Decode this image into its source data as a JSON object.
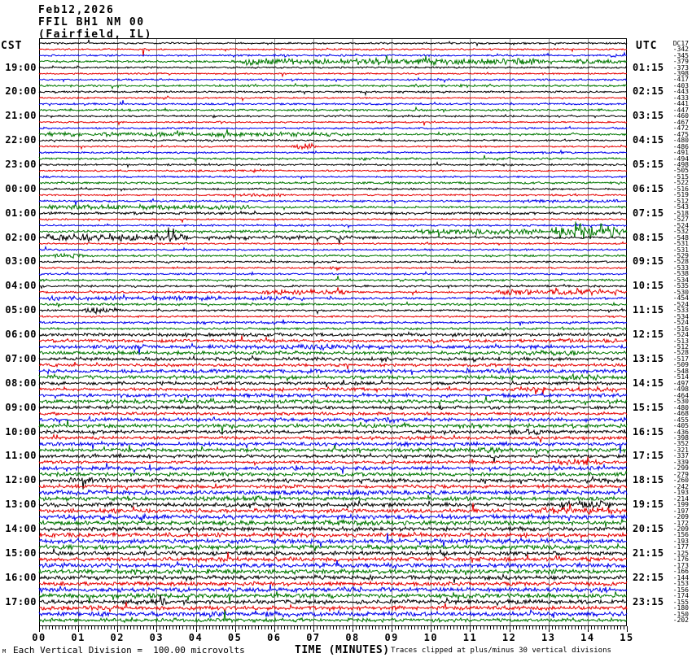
{
  "header": {
    "line1": "Feb12,2026",
    "line2": "FFIL BH1 NM 00",
    "line3": "(Fairfield, IL)"
  },
  "axes": {
    "left_header": "CST",
    "right_header": "UTC",
    "x_ticks": [
      "00",
      "01",
      "02",
      "03",
      "04",
      "05",
      "06",
      "07",
      "08",
      "09",
      "10",
      "11",
      "12",
      "13",
      "14",
      "15"
    ],
    "x_title": "TIME (MINUTES)"
  },
  "footer": {
    "left_note": "Each Vertical Division =  100.00 microvolts",
    "right_note": "Traces clipped at plus/minus 30 vertical divisions",
    "corner_mark": "M"
  },
  "colors": {
    "black": "#000000",
    "red": "#e60000",
    "blue": "#0000ee",
    "green": "#007700",
    "grid": "#808080",
    "border": "#000000"
  },
  "chart_data": {
    "type": "line",
    "subtype": "helicorder",
    "title": "FFIL BH1 NM 00 (Fairfield, IL) Feb12,2026",
    "x_range_minutes": [
      0,
      15
    ],
    "minutes_per_row": 15,
    "row_color_cycle": [
      "black",
      "red",
      "blue",
      "green"
    ],
    "grid": true,
    "rows": [
      {
        "dc": "DC17",
        "amp": 0.9,
        "bursts": [
          [
            8,
            13,
            0.9
          ]
        ]
      },
      {
        "dc": "-342",
        "amp": 0.8,
        "bursts": [
          [
            2.5,
            2.8,
            3
          ]
        ]
      },
      {
        "dc": "-345",
        "amp": 0.9,
        "bursts": [
          [
            12.8,
            13.2,
            3
          ],
          [
            14.4,
            15,
            2
          ]
        ]
      },
      {
        "dc": "-379",
        "amp": 1.1,
        "bursts": [
          [
            5,
            13,
            3.2
          ],
          [
            13.5,
            15,
            2.6
          ]
        ]
      },
      {
        "cst": "19:00",
        "utc": "01:15",
        "dc": "-373",
        "amp": 0.9,
        "bursts": []
      },
      {
        "dc": "-398",
        "amp": 0.8,
        "bursts": [
          [
            2.5,
            2.8,
            4
          ]
        ]
      },
      {
        "dc": "-417",
        "amp": 0.9,
        "bursts": []
      },
      {
        "dc": "-403",
        "amp": 1.0,
        "bursts": [
          [
            10.5,
            11.2,
            1.8
          ]
        ]
      },
      {
        "cst": "20:00",
        "utc": "02:15",
        "dc": "-443",
        "amp": 0.9,
        "bursts": []
      },
      {
        "dc": "-433",
        "amp": 0.8,
        "bursts": [
          [
            3.1,
            3.4,
            3.5
          ]
        ]
      },
      {
        "dc": "-441",
        "amp": 0.9,
        "bursts": []
      },
      {
        "dc": "-447",
        "amp": 1.0,
        "bursts": [
          [
            0.4,
            1.1,
            1.8
          ]
        ]
      },
      {
        "cst": "21:00",
        "utc": "03:15",
        "dc": "-460",
        "amp": 0.9,
        "bursts": [
          [
            4.3,
            4.6,
            2.2
          ]
        ]
      },
      {
        "dc": "-467",
        "amp": 0.8,
        "bursts": [
          [
            4.5,
            4.8,
            2.6
          ]
        ]
      },
      {
        "dc": "-472",
        "amp": 0.9,
        "bursts": []
      },
      {
        "dc": "-475",
        "amp": 1.0,
        "bursts": [
          [
            0,
            8,
            2.2
          ]
        ]
      },
      {
        "cst": "22:00",
        "utc": "04:15",
        "dc": "-480",
        "amp": 0.9,
        "bursts": [
          [
            4.2,
            4.6,
            2.6
          ]
        ]
      },
      {
        "dc": "-486",
        "amp": 0.8,
        "bursts": [
          [
            6.3,
            7.2,
            3
          ]
        ]
      },
      {
        "dc": "-491",
        "amp": 0.9,
        "bursts": []
      },
      {
        "dc": "-494",
        "amp": 1.0,
        "bursts": [
          [
            8,
            9,
            1.8
          ]
        ]
      },
      {
        "cst": "23:00",
        "utc": "05:15",
        "dc": "-498",
        "amp": 0.9,
        "bursts": []
      },
      {
        "dc": "-505",
        "amp": 0.8,
        "bursts": [
          [
            3,
            6,
            1.2
          ],
          [
            6,
            6.2,
            2.5
          ]
        ]
      },
      {
        "dc": "-515",
        "amp": 0.9,
        "bursts": [
          [
            5.4,
            5.6,
            2
          ]
        ]
      },
      {
        "dc": "-522",
        "amp": 1.0,
        "bursts": []
      },
      {
        "cst": "00:00",
        "utc": "06:15",
        "dc": "-516",
        "amp": 0.9,
        "bursts": []
      },
      {
        "dc": "-519",
        "amp": 0.8,
        "bursts": [
          [
            5,
            6.5,
            1.6
          ],
          [
            13.2,
            13.5,
            2.6
          ]
        ]
      },
      {
        "dc": "-512",
        "amp": 1.0,
        "bursts": [
          [
            12,
            15,
            1.6
          ]
        ]
      },
      {
        "dc": "-543",
        "amp": 1.0,
        "bursts": [
          [
            0,
            5.5,
            2.4
          ]
        ]
      },
      {
        "cst": "01:00",
        "utc": "07:15",
        "dc": "-518",
        "amp": 1.3,
        "bursts": []
      },
      {
        "dc": "-527",
        "amp": 0.8,
        "bursts": [
          [
            13.6,
            13.9,
            2.4
          ]
        ]
      },
      {
        "dc": "-524",
        "amp": 0.9,
        "bursts": [
          [
            9.4,
            9.7,
            2.6
          ]
        ]
      },
      {
        "dc": "-532",
        "amp": 1.2,
        "bursts": [
          [
            9.5,
            13,
            2.8
          ],
          [
            13,
            15,
            8.5
          ]
        ]
      },
      {
        "cst": "02:00",
        "utc": "08:15",
        "dc": "-548",
        "amp": 1.2,
        "bursts": [
          [
            0,
            4,
            3.8
          ],
          [
            4,
            8,
            2.2
          ]
        ]
      },
      {
        "dc": "-531",
        "amp": 0.8,
        "bursts": []
      },
      {
        "dc": "-531",
        "amp": 0.9,
        "bursts": []
      },
      {
        "dc": "-529",
        "amp": 1.0,
        "bursts": [
          [
            0.2,
            1.2,
            2.8
          ]
        ]
      },
      {
        "cst": "03:00",
        "utc": "09:15",
        "dc": "-528",
        "amp": 0.9,
        "bursts": []
      },
      {
        "dc": "-533",
        "amp": 0.8,
        "bursts": [
          [
            7.4,
            7.7,
            4.5
          ]
        ]
      },
      {
        "dc": "-538",
        "amp": 0.9,
        "bursts": []
      },
      {
        "dc": "-534",
        "amp": 1.0,
        "bursts": [
          [
            9,
            9.4,
            2.6
          ]
        ]
      },
      {
        "cst": "04:00",
        "utc": "10:15",
        "dc": "-535",
        "amp": 1.0,
        "bursts": []
      },
      {
        "dc": "-530",
        "amp": 0.9,
        "bursts": [
          [
            5.5,
            8,
            2.6
          ],
          [
            11.5,
            15,
            3
          ]
        ]
      },
      {
        "dc": "-454",
        "amp": 1.1,
        "bursts": [
          [
            0,
            7,
            2.2
          ]
        ]
      },
      {
        "dc": "-524",
        "amp": 1.1,
        "bursts": []
      },
      {
        "cst": "05:00",
        "utc": "11:15",
        "dc": "-533",
        "amp": 1.0,
        "bursts": [
          [
            1,
            2.2,
            3.2
          ]
        ]
      },
      {
        "dc": "-534",
        "amp": 0.9,
        "bursts": [
          [
            3.5,
            3.9,
            2.2
          ]
        ]
      },
      {
        "dc": "-524",
        "amp": 1.1,
        "bursts": [
          [
            4,
            4.4,
            2.4
          ]
        ]
      },
      {
        "dc": "-516",
        "amp": 1.1,
        "bursts": []
      },
      {
        "cst": "06:00",
        "utc": "12:15",
        "dc": "-524",
        "amp": 1.6,
        "bursts": []
      },
      {
        "dc": "-513",
        "amp": 1.5,
        "bursts": [
          [
            13,
            15,
            2.2
          ]
        ]
      },
      {
        "dc": "-512",
        "amp": 1.8,
        "bursts": [
          [
            1.5,
            3,
            2.6
          ],
          [
            6,
            9,
            2.6
          ]
        ]
      },
      {
        "dc": "-528",
        "amp": 1.8,
        "bursts": [
          [
            12.5,
            14,
            2.6
          ]
        ]
      },
      {
        "cst": "07:00",
        "utc": "13:15",
        "dc": "-517",
        "amp": 1.6,
        "bursts": [
          [
            8.5,
            9.1,
            3.2
          ]
        ]
      },
      {
        "dc": "-509",
        "amp": 1.5,
        "bursts": []
      },
      {
        "dc": "-548",
        "amp": 1.8,
        "bursts": [
          [
            6.5,
            7.5,
            2.6
          ],
          [
            11.5,
            12.5,
            2.6
          ]
        ]
      },
      {
        "dc": "-514",
        "amp": 1.8,
        "bursts": [
          [
            13,
            14.5,
            3
          ]
        ]
      },
      {
        "cst": "08:00",
        "utc": "14:15",
        "dc": "-497",
        "amp": 1.6,
        "bursts": [
          [
            4.3,
            4.8,
            3.6
          ]
        ]
      },
      {
        "dc": "-498",
        "amp": 1.5,
        "bursts": [
          [
            4.8,
            5.1,
            3.6
          ],
          [
            12,
            15,
            2.4
          ]
        ]
      },
      {
        "dc": "-464",
        "amp": 1.8,
        "bursts": [
          [
            3.5,
            4,
            2.6
          ]
        ]
      },
      {
        "dc": "-530",
        "amp": 1.8,
        "bursts": [
          [
            6,
            6.6,
            2.6
          ]
        ]
      },
      {
        "cst": "09:00",
        "utc": "15:15",
        "dc": "-480",
        "amp": 1.6,
        "bursts": [
          [
            9.5,
            10.5,
            2.2
          ]
        ]
      },
      {
        "dc": "-468",
        "amp": 1.5,
        "bursts": []
      },
      {
        "dc": "-455",
        "amp": 1.8,
        "bursts": [
          [
            8.5,
            9.2,
            3
          ]
        ]
      },
      {
        "dc": "-405",
        "amp": 1.8,
        "bursts": [
          [
            10.5,
            11.5,
            2.6
          ]
        ]
      },
      {
        "cst": "10:00",
        "utc": "16:15",
        "dc": "-436",
        "amp": 1.6,
        "bursts": [
          [
            4.4,
            4.9,
            2.8
          ],
          [
            11.8,
            13,
            2.8
          ]
        ]
      },
      {
        "dc": "-398",
        "amp": 1.5,
        "bursts": [
          [
            9,
            10.5,
            2.2
          ]
        ]
      },
      {
        "dc": "-352",
        "amp": 1.8,
        "bursts": [
          [
            9,
            9.6,
            2.6
          ]
        ]
      },
      {
        "dc": "-321",
        "amp": 1.8,
        "bursts": [
          [
            10.8,
            12,
            3
          ]
        ]
      },
      {
        "cst": "11:00",
        "utc": "17:15",
        "dc": "-337",
        "amp": 1.6,
        "bursts": []
      },
      {
        "dc": "-339",
        "amp": 1.5,
        "bursts": [
          [
            13,
            14.5,
            3
          ]
        ]
      },
      {
        "dc": "-299",
        "amp": 1.8,
        "bursts": [
          [
            6.3,
            7,
            3
          ],
          [
            12.8,
            13.5,
            3.4
          ]
        ]
      },
      {
        "dc": "-279",
        "amp": 1.8,
        "bursts": []
      },
      {
        "cst": "12:00",
        "utc": "18:15",
        "dc": "-260",
        "amp": 1.8,
        "bursts": [
          [
            0.5,
            2,
            2.6
          ]
        ]
      },
      {
        "dc": "-242",
        "amp": 1.7,
        "bursts": []
      },
      {
        "dc": "-193",
        "amp": 2.0,
        "bursts": [
          [
            0,
            2,
            2.6
          ],
          [
            5,
            10,
            2.4
          ]
        ]
      },
      {
        "dc": "-214",
        "amp": 2.0,
        "bursts": [
          [
            4.5,
            6,
            2.6
          ]
        ]
      },
      {
        "cst": "13:00",
        "utc": "19:15",
        "dc": "-199",
        "amp": 2.0,
        "bursts": [
          [
            0,
            3,
            1.4
          ],
          [
            13,
            14.8,
            4.5
          ]
        ]
      },
      {
        "dc": "-197",
        "amp": 2.0,
        "bursts": [
          [
            12.5,
            15,
            3.4
          ]
        ]
      },
      {
        "dc": "-209",
        "amp": 2.2,
        "bursts": [
          [
            0,
            3,
            2.4
          ]
        ]
      },
      {
        "dc": "-172",
        "amp": 2.2,
        "bursts": [
          [
            7,
            9,
            2.6
          ]
        ]
      },
      {
        "cst": "14:00",
        "utc": "20:15",
        "dc": "-209",
        "amp": 2.0,
        "bursts": []
      },
      {
        "dc": "-156",
        "amp": 2.0,
        "bursts": [
          [
            9,
            10,
            2.6
          ]
        ]
      },
      {
        "dc": "-193",
        "amp": 2.2,
        "bursts": [
          [
            11,
            12.5,
            2.6
          ]
        ]
      },
      {
        "dc": "-177",
        "amp": 2.2,
        "bursts": []
      },
      {
        "cst": "15:00",
        "utc": "21:15",
        "dc": "-125",
        "amp": 2.0,
        "bursts": [
          [
            11.5,
            12.5,
            2.6
          ]
        ]
      },
      {
        "dc": "-176",
        "amp": 2.0,
        "bursts": [
          [
            12.8,
            13.5,
            3.4
          ]
        ]
      },
      {
        "dc": "-173",
        "amp": 2.2,
        "bursts": [
          [
            5.5,
            7,
            2.6
          ],
          [
            13.5,
            14.5,
            2.6
          ]
        ]
      },
      {
        "dc": "-166",
        "amp": 2.2,
        "bursts": [
          [
            4.5,
            5.5,
            2.6
          ]
        ]
      },
      {
        "cst": "16:00",
        "utc": "22:15",
        "dc": "-144",
        "amp": 2.0,
        "bursts": [
          [
            6.5,
            7.5,
            2.6
          ]
        ]
      },
      {
        "dc": "-153",
        "amp": 2.0,
        "bursts": []
      },
      {
        "dc": "-156",
        "amp": 2.2,
        "bursts": [
          [
            7.5,
            8.5,
            2.6
          ],
          [
            13.8,
            14.8,
            3
          ]
        ]
      },
      {
        "dc": "-174",
        "amp": 2.2,
        "bursts": [
          [
            10.5,
            11.5,
            2.6
          ]
        ]
      },
      {
        "cst": "17:00",
        "utc": "23:15",
        "dc": "-155",
        "amp": 2.0,
        "bursts": [
          [
            2,
            3.5,
            3.6
          ],
          [
            12,
            13,
            2.6
          ]
        ]
      },
      {
        "dc": "-180",
        "amp": 2.0,
        "bursts": [
          [
            1,
            2.5,
            2.6
          ]
        ]
      },
      {
        "dc": "-150",
        "amp": 2.2,
        "bursts": [
          [
            5.5,
            7,
            3
          ]
        ]
      },
      {
        "dc": "-202",
        "amp": 1.9,
        "bursts": [
          [
            10,
            11,
            2.2
          ]
        ]
      }
    ]
  }
}
